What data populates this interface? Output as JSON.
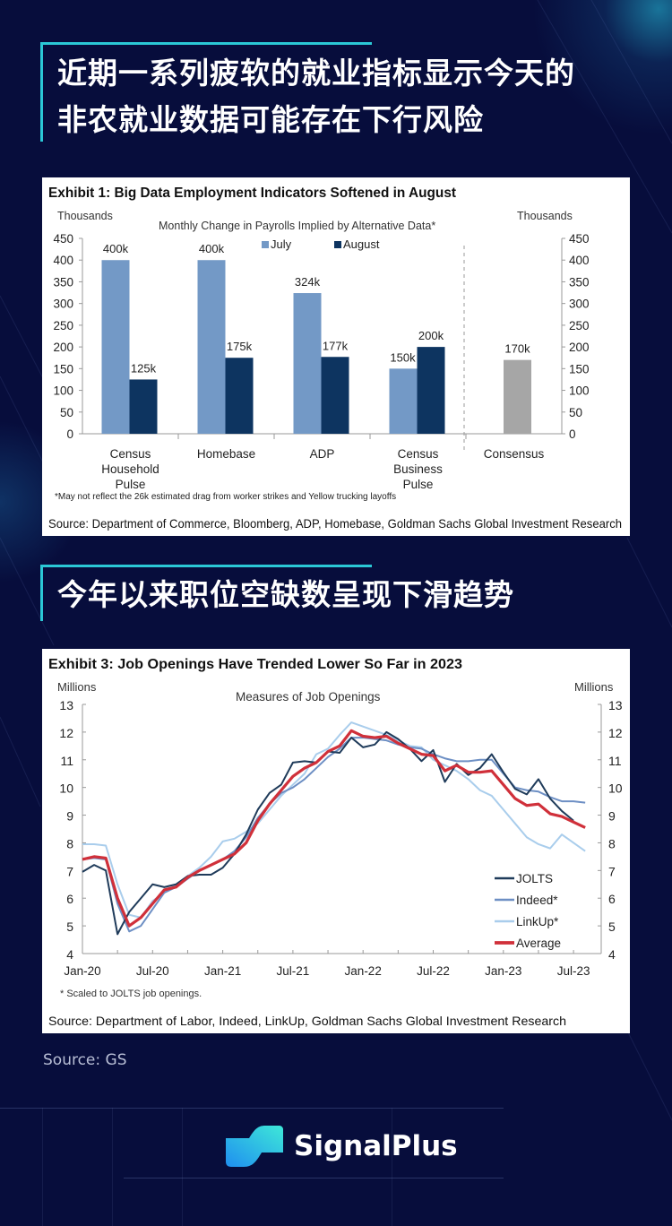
{
  "headline_1": "近期一系列疲软的就业指标显示今天的非农就业数据可能存在下行风险",
  "headline_1_line1": "近期一系列疲软的就业指标显示今天的",
  "headline_1_line2": "非农就业数据可能存在下行风险",
  "headline_2": "今年以来职位空缺数呈现下滑趋势",
  "source_note": "Source: GS",
  "brand": "SignalPlus",
  "colors": {
    "background": "#070d3c",
    "accent": "#2bc8d6",
    "july": "#7399c6",
    "august": "#0d3460",
    "consensus": "#a6a6a6",
    "jolts": "#1f3b5a",
    "indeed": "#6d8fc4",
    "linkup": "#a9cdec",
    "average": "#d0303a"
  },
  "chart_data": [
    {
      "type": "bar",
      "exhibit_title": "Exhibit 1: Big Data Employment Indicators Softened in August",
      "title": "Monthly Change  in Payrolls Implied  by Alternative  Data*",
      "ylabel_left": "Thousands",
      "ylabel_right": "Thousands",
      "ylim": [
        0,
        450
      ],
      "yticks": [
        0,
        50,
        100,
        150,
        200,
        250,
        300,
        350,
        400,
        450
      ],
      "categories": [
        "Census Household Pulse",
        "Homebase",
        "ADP",
        "Census Business Pulse",
        "Consensus"
      ],
      "category_lines": [
        [
          "Census",
          "Household",
          "Pulse"
        ],
        [
          "Homebase"
        ],
        [
          "ADP"
        ],
        [
          "Census",
          "Business",
          "Pulse"
        ],
        [
          "Consensus"
        ]
      ],
      "series": [
        {
          "name": "July",
          "values": [
            400,
            400,
            324,
            150,
            null
          ],
          "labels": [
            "400k",
            "400k",
            "324k",
            "150k",
            null
          ]
        },
        {
          "name": "August",
          "values": [
            125,
            175,
            177,
            200,
            null
          ],
          "labels": [
            "125k",
            "175k",
            "177k",
            "200k",
            null
          ]
        },
        {
          "values": [
            null,
            null,
            null,
            null,
            170
          ],
          "labels": [
            null,
            null,
            null,
            null,
            "170k"
          ]
        }
      ],
      "legend_position": "top-center",
      "footnote": "*May not reflect the 26k estimated drag  from worker strikes and Yellow  trucking layoffs",
      "source": "Source: Department of Commerce, Bloomberg, ADP, Homebase, Goldman Sachs Global Investment Research"
    },
    {
      "type": "line",
      "exhibit_title": "Exhibit 3: Job Openings Have Trended Lower So Far in 2023",
      "title": "Measures of Job Openings",
      "ylabel_left": "Millions",
      "ylabel_right": "Millions",
      "ylim": [
        4,
        13
      ],
      "yticks": [
        4,
        5,
        6,
        7,
        8,
        9,
        10,
        11,
        12,
        13
      ],
      "x_start": "Jan-20",
      "xticks": [
        "Jan-20",
        "Jul-20",
        "Jan-21",
        "Jul-21",
        "Jan-22",
        "Jul-22",
        "Jan-23",
        "Jul-23"
      ],
      "legend_position": "bottom-right",
      "series": [
        {
          "name": "JOLTS",
          "values": [
            6.95,
            7.2,
            7.0,
            4.7,
            5.5,
            6.0,
            6.5,
            6.4,
            6.5,
            6.8,
            6.85,
            6.85,
            7.1,
            7.6,
            8.3,
            9.2,
            9.8,
            10.1,
            10.9,
            10.95,
            10.9,
            11.3,
            11.25,
            11.8,
            11.45,
            11.55,
            12.0,
            11.75,
            11.4,
            10.95,
            11.35,
            10.2,
            10.85,
            10.45,
            10.7,
            11.2,
            10.55,
            9.95,
            9.75,
            10.3,
            9.6,
            9.15,
            8.8
          ]
        },
        {
          "name": "Indeed*",
          "values": [
            7.4,
            7.45,
            7.4,
            5.8,
            4.8,
            5.0,
            5.6,
            6.2,
            6.4,
            6.7,
            7.0,
            7.2,
            7.4,
            7.7,
            8.2,
            8.9,
            9.4,
            9.8,
            10.0,
            10.3,
            10.7,
            11.1,
            11.4,
            11.8,
            11.8,
            11.75,
            11.7,
            11.55,
            11.45,
            11.4,
            11.2,
            11.05,
            10.95,
            10.95,
            11.0,
            11.0,
            10.5,
            10.0,
            9.9,
            9.85,
            9.65,
            9.5,
            9.5,
            9.45
          ]
        },
        {
          "name": "LinkUp*",
          "values": [
            7.95,
            7.95,
            7.9,
            6.5,
            5.4,
            5.3,
            5.9,
            6.2,
            6.5,
            6.8,
            7.1,
            7.5,
            8.05,
            8.15,
            8.4,
            8.7,
            9.2,
            9.7,
            10.1,
            10.5,
            11.2,
            11.4,
            11.9,
            12.35,
            12.2,
            12.05,
            11.9,
            11.7,
            11.5,
            11.45,
            11.0,
            10.8,
            10.6,
            10.3,
            9.9,
            9.7,
            9.2,
            8.7,
            8.2,
            7.95,
            7.8,
            8.3,
            8.0,
            7.7
          ]
        },
        {
          "name": "Average",
          "values": [
            7.4,
            7.5,
            7.45,
            6.0,
            5.0,
            5.3,
            5.8,
            6.3,
            6.4,
            6.75,
            7.0,
            7.2,
            7.4,
            7.6,
            8.0,
            8.8,
            9.4,
            9.9,
            10.4,
            10.7,
            10.9,
            11.3,
            11.5,
            12.05,
            11.85,
            11.8,
            11.85,
            11.6,
            11.4,
            11.2,
            11.15,
            10.6,
            10.8,
            10.55,
            10.55,
            10.6,
            10.1,
            9.6,
            9.35,
            9.4,
            9.05,
            8.95,
            8.75,
            8.55
          ]
        }
      ],
      "footnote": "* Scaled to JOLTS  job  openings.",
      "source": "Source: Department of Labor, Indeed, LinkUp, Goldman Sachs Global Investment Research"
    }
  ]
}
